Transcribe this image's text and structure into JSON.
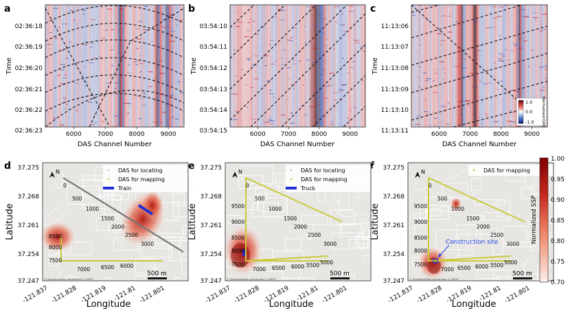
{
  "figure": {
    "panel_letters": [
      "a",
      "b",
      "c",
      "d",
      "e",
      "f"
    ]
  },
  "chart_data": [
    {
      "type": "heatmap",
      "panel": "a",
      "title": "",
      "xlabel": "DAS Channel Number",
      "ylabel": "Time",
      "x_ticks": [
        "6000",
        "7000",
        "8000",
        "9000"
      ],
      "x_tick_values": [
        6000,
        7000,
        8000,
        9000
      ],
      "xlim": [
        5100,
        9500
      ],
      "y_ticks": [
        "02:36:18",
        "02:36:19",
        "02:36:20",
        "02:36:21",
        "02:36:22",
        "02:36:23"
      ]
    },
    {
      "type": "heatmap",
      "panel": "b",
      "title": "",
      "xlabel": "DAS Channel Number",
      "ylabel": "Time",
      "x_ticks": [
        "6000",
        "7000",
        "8000",
        "9000"
      ],
      "x_tick_values": [
        6000,
        7000,
        8000,
        9000
      ],
      "xlim": [
        5100,
        9500
      ],
      "y_ticks": [
        "03:54:10",
        "03:54:11",
        "03:54:12",
        "03:54:13",
        "03:54:14",
        "03:54:15"
      ]
    },
    {
      "type": "heatmap",
      "panel": "c",
      "title": "",
      "xlabel": "DAS Channel Number",
      "ylabel": "Time",
      "x_ticks": [
        "6000",
        "7000",
        "8000",
        "9000"
      ],
      "x_tick_values": [
        6000,
        7000,
        8000,
        9000
      ],
      "xlim": [
        5100,
        9500
      ],
      "y_ticks": [
        "11:13:06",
        "11:13:07",
        "11:13:08",
        "11:13:09",
        "11:13:10",
        "11:13:11"
      ],
      "colorbar": {
        "label": "Normalized DAS",
        "ticks": [
          "1.0",
          "0.0",
          "-1.0"
        ],
        "range": [
          -1.0,
          1.0
        ]
      }
    },
    {
      "type": "heatmap",
      "panel": "d",
      "xlabel": "Longitude",
      "ylabel": "Latitude",
      "x_ticks": [
        "-121.837",
        "-121.828",
        "-121.819",
        "-121.81",
        "-121.801"
      ],
      "y_ticks": [
        "37.275",
        "37.268",
        "37.261",
        "37.254",
        "37.247"
      ],
      "legend": [
        "DAS for locating",
        "DAS for mapping",
        "Train"
      ],
      "channel_labels": [
        "0",
        "500",
        "1000",
        "1500",
        "2000",
        "2500",
        "3000",
        "8500",
        "8000",
        "7500",
        "7000",
        "6500",
        "6000"
      ],
      "scale_bar": "500 m"
    },
    {
      "type": "heatmap",
      "panel": "e",
      "xlabel": "Longitude",
      "ylabel": "Latitude",
      "x_ticks": [
        "-121.837",
        "-121.828",
        "-121.819",
        "-121.81",
        "-121.801"
      ],
      "y_ticks": [
        "37.275",
        "37.268",
        "37.261",
        "37.254",
        "37.247"
      ],
      "legend": [
        "DAS for locating",
        "DAS for mapping",
        "Truck"
      ],
      "channel_labels": [
        "0",
        "500",
        "1000",
        "1500",
        "2000",
        "2500",
        "3000",
        "9500",
        "9000",
        "8500",
        "8000",
        "7500",
        "7000",
        "6500",
        "6000",
        "5500",
        "5000"
      ],
      "scale_bar": "500 m"
    },
    {
      "type": "heatmap",
      "panel": "f",
      "xlabel": "Longitude",
      "ylabel": "Latitude",
      "x_ticks": [
        "-121.837",
        "-121.828",
        "-121.819",
        "-121.81",
        "-121.801"
      ],
      "y_ticks": [
        "37.275",
        "37.268",
        "37.261",
        "37.254",
        "37.247"
      ],
      "legend": [
        "DAS for mapping"
      ],
      "annotation": "Construction site",
      "channel_labels": [
        "0",
        "500",
        "1000",
        "1500",
        "2000",
        "2500",
        "3000",
        "9500",
        "9000",
        "8500",
        "8000",
        "7500",
        "7000",
        "6500",
        "6000",
        "5500",
        "5000"
      ],
      "scale_bar": "500 m",
      "colorbar": {
        "label": "Normalized SSP",
        "ticks": [
          "1.00",
          "0.95",
          "0.90",
          "0.85",
          "0.80",
          "0.75",
          "0.70"
        ],
        "range": [
          0.7,
          1.0
        ]
      }
    }
  ],
  "map_attribution": "© OpenStreetMap contributors © CARTO",
  "compass": "N",
  "colors": {
    "das_red": "#c0252a",
    "das_blue": "#2d56b8",
    "ssp_max": "#7f0000",
    "ssp_min": "#fbe7e0",
    "das_line": "#c9c93a",
    "vehicle": "#1f2fd6",
    "annotation": "#1f3fe0"
  }
}
